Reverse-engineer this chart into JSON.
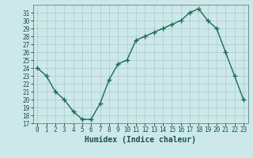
{
  "x": [
    0,
    1,
    2,
    3,
    4,
    5,
    6,
    7,
    8,
    9,
    10,
    11,
    12,
    13,
    14,
    15,
    16,
    17,
    18,
    19,
    20,
    21,
    22,
    23
  ],
  "y": [
    24,
    23,
    21,
    20,
    18.5,
    17.5,
    17.5,
    19.5,
    22.5,
    24.5,
    25,
    27.5,
    28,
    28.5,
    29,
    29.5,
    30,
    31,
    31.5,
    30,
    29,
    26,
    23,
    20
  ],
  "line_color": "#1a6b5a",
  "marker": "+",
  "marker_size": 4,
  "bg_color": "#cce8e8",
  "grid_color": "#aacccc",
  "xlabel": "Humidex (Indice chaleur)",
  "ylim": [
    17,
    32
  ],
  "xlim": [
    -0.5,
    23.5
  ],
  "yticks": [
    17,
    18,
    19,
    20,
    21,
    22,
    23,
    24,
    25,
    26,
    27,
    28,
    29,
    30,
    31
  ],
  "xticks": [
    0,
    1,
    2,
    3,
    4,
    5,
    6,
    7,
    8,
    9,
    10,
    11,
    12,
    13,
    14,
    15,
    16,
    17,
    18,
    19,
    20,
    21,
    22,
    23
  ],
  "tick_fontsize": 5.5,
  "xlabel_fontsize": 7,
  "line_width": 1.0
}
